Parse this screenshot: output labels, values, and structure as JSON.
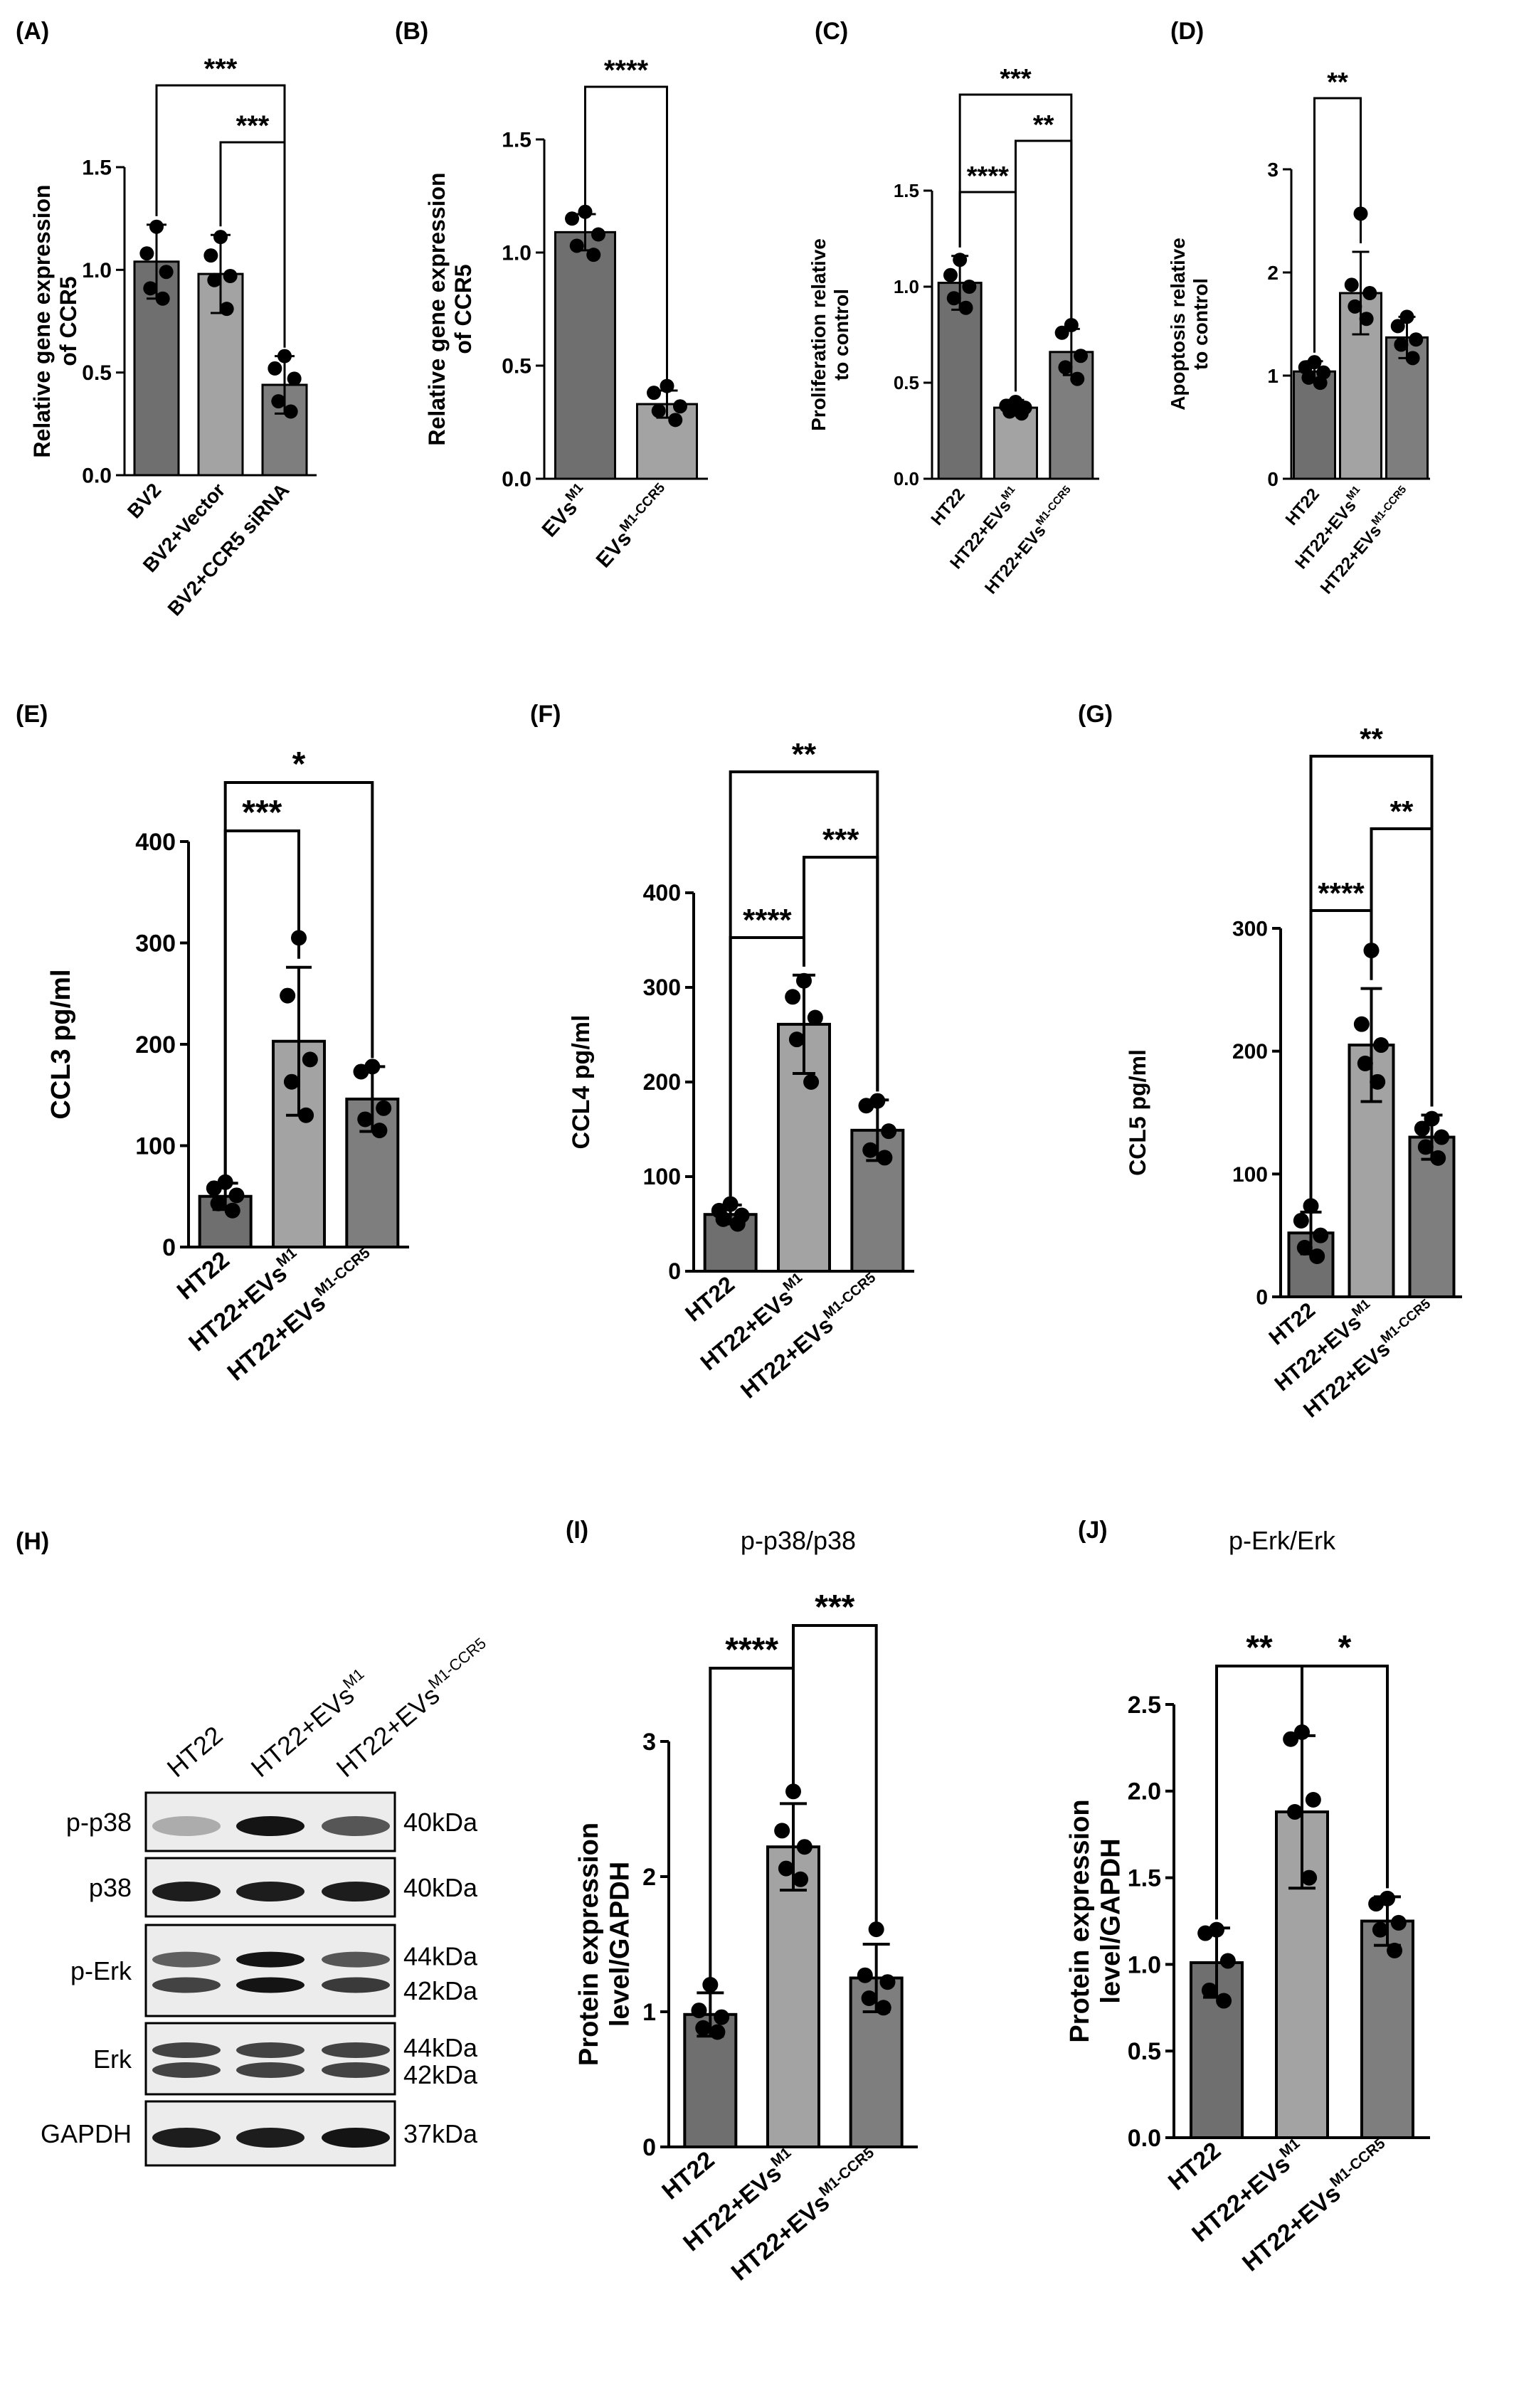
{
  "figure": {
    "blot": {
      "letter": "(H)",
      "lanes": [
        "HT22",
        "HT22+EVs",
        "HT22+EVs"
      ],
      "lane_sups": [
        "",
        "M1",
        "M1-CCR5"
      ],
      "rows": [
        {
          "label": "p-p38",
          "kda": [
            "40kDa"
          ]
        },
        {
          "label": "p38",
          "kda": [
            "40kDa"
          ]
        },
        {
          "label": "p-Erk",
          "kda": [
            "44kDa",
            "42kDa"
          ]
        },
        {
          "label": "Erk",
          "kda": [
            "44kDa",
            "42kDa"
          ]
        },
        {
          "label": "GAPDH",
          "kda": [
            "37kDa"
          ]
        }
      ]
    }
  },
  "chart_data": [
    {
      "panel": "(A)",
      "type": "bar",
      "title": "",
      "ylabel": [
        "Relative gene expression",
        "of CCR5"
      ],
      "categories": [
        "BV2",
        "BV2+Vector",
        "BV2+CCR5 siRNA"
      ],
      "category_sups": [
        "",
        "",
        ""
      ],
      "values": [
        1.04,
        0.98,
        0.44
      ],
      "errors": [
        0.18,
        0.19,
        0.14
      ],
      "points": [
        [
          1.21,
          1.08,
          0.99,
          0.91,
          0.86
        ],
        [
          1.16,
          1.07,
          0.97,
          0.95,
          0.81
        ],
        [
          0.58,
          0.52,
          0.47,
          0.36,
          0.31
        ]
      ],
      "ylim": [
        0,
        1.5
      ],
      "yticks": [
        "0.0",
        "0.5",
        "1.0",
        "1.5"
      ],
      "comparisons": [
        {
          "from": 0,
          "to": 2,
          "label": "***"
        },
        {
          "from": 1,
          "to": 2,
          "label": "***"
        }
      ]
    },
    {
      "panel": "(B)",
      "type": "bar",
      "title": "",
      "ylabel": [
        "Relative gene expression",
        "of CCR5"
      ],
      "categories": [
        "EVs",
        "EVs"
      ],
      "category_sups": [
        "M1",
        "M1-CCR5"
      ],
      "values": [
        1.09,
        0.33
      ],
      "errors": [
        0.08,
        0.06
      ],
      "points": [
        [
          1.18,
          1.15,
          1.08,
          1.03,
          0.99
        ],
        [
          0.41,
          0.38,
          0.32,
          0.3,
          0.26
        ]
      ],
      "ylim": [
        0,
        1.5
      ],
      "yticks": [
        "0.0",
        "0.5",
        "1.0",
        "1.5"
      ],
      "comparisons": [
        {
          "from": 0,
          "to": 1,
          "label": "****"
        }
      ]
    },
    {
      "panel": "(C)",
      "type": "bar",
      "title": "",
      "ylabel": [
        "Proliferation relative",
        "to control"
      ],
      "categories": [
        "HT22",
        "HT22+EVs",
        "HT22+EVs"
      ],
      "category_sups": [
        "",
        "M1",
        "M1-CCR5"
      ],
      "values": [
        1.02,
        0.37,
        0.66
      ],
      "errors": [
        0.14,
        0.04,
        0.12
      ],
      "points": [
        [
          1.14,
          1.06,
          1.0,
          0.94,
          0.89
        ],
        [
          0.4,
          0.38,
          0.37,
          0.35,
          0.34
        ],
        [
          0.8,
          0.76,
          0.64,
          0.58,
          0.52
        ]
      ],
      "ylim": [
        0,
        1.5
      ],
      "yticks": [
        "0.0",
        "0.5",
        "1.0",
        "1.5"
      ],
      "comparisons": [
        {
          "from": 0,
          "to": 2,
          "label": "***"
        },
        {
          "from": 1,
          "to": 2,
          "label": "**"
        },
        {
          "from": 0,
          "to": 1,
          "label": "****"
        }
      ]
    },
    {
      "panel": "(D)",
      "type": "bar",
      "title": "",
      "ylabel": [
        "Apoptosis relative",
        "to control"
      ],
      "categories": [
        "HT22",
        "HT22+EVs",
        "HT22+EVs"
      ],
      "category_sups": [
        "",
        "M1",
        "M1-CCR5"
      ],
      "values": [
        1.04,
        1.8,
        1.37
      ],
      "errors": [
        0.1,
        0.4,
        0.2
      ],
      "points": [
        [
          1.13,
          1.08,
          1.03,
          0.98,
          0.93
        ],
        [
          2.57,
          1.88,
          1.8,
          1.67,
          1.55
        ],
        [
          1.57,
          1.48,
          1.35,
          1.3,
          1.17
        ]
      ],
      "ylim": [
        0,
        3
      ],
      "yticks": [
        "0",
        "1",
        "2",
        "3"
      ],
      "comparisons": [
        {
          "from": 0,
          "to": 1,
          "label": "**"
        }
      ]
    },
    {
      "panel": "(E)",
      "type": "bar",
      "title": "",
      "ylabel": [
        "CCL3 pg/ml"
      ],
      "categories": [
        "HT22",
        "HT22+EVs",
        "HT22+EVs"
      ],
      "category_sups": [
        "",
        "M1",
        "M1-CCR5"
      ],
      "values": [
        50,
        203,
        146
      ],
      "errors": [
        13,
        73,
        32
      ],
      "points": [
        [
          64,
          58,
          51,
          43,
          36
        ],
        [
          305,
          248,
          185,
          163,
          130
        ],
        [
          178,
          173,
          137,
          126,
          115
        ]
      ],
      "ylim": [
        0,
        400
      ],
      "yticks": [
        "0",
        "100",
        "200",
        "300",
        "400"
      ],
      "comparisons": [
        {
          "from": 0,
          "to": 1,
          "label": "***"
        },
        {
          "from": 0,
          "to": 2,
          "label": "*"
        }
      ]
    },
    {
      "panel": "(F)",
      "type": "bar",
      "title": "",
      "ylabel": [
        "CCL4 pg/ml"
      ],
      "categories": [
        "HT22",
        "HT22+EVs",
        "HT22+EVs"
      ],
      "category_sups": [
        "",
        "M1",
        "M1-CCR5"
      ],
      "values": [
        60,
        261,
        149
      ],
      "errors": [
        10,
        52,
        32
      ],
      "points": [
        [
          71,
          64,
          59,
          55,
          50
        ],
        [
          307,
          290,
          268,
          245,
          200
        ],
        [
          180,
          175,
          148,
          128,
          120
        ]
      ],
      "ylim": [
        0,
        400
      ],
      "yticks": [
        "0",
        "100",
        "200",
        "300",
        "400"
      ],
      "comparisons": [
        {
          "from": 0,
          "to": 2,
          "label": "**"
        },
        {
          "from": 1,
          "to": 2,
          "label": "***"
        },
        {
          "from": 0,
          "to": 1,
          "label": "****"
        }
      ]
    },
    {
      "panel": "(G)",
      "type": "bar",
      "title": "",
      "ylabel": [
        "CCL5 pg/ml"
      ],
      "categories": [
        "HT22",
        "HT22+EVs",
        "HT22+EVs"
      ],
      "category_sups": [
        "",
        "M1",
        "M1-CCR5"
      ],
      "values": [
        52,
        205,
        130
      ],
      "errors": [
        17,
        46,
        18
      ],
      "points": [
        [
          74,
          62,
          50,
          40,
          33
        ],
        [
          282,
          222,
          205,
          190,
          175
        ],
        [
          145,
          137,
          130,
          122,
          113
        ]
      ],
      "ylim": [
        0,
        300
      ],
      "yticks": [
        "0",
        "100",
        "200",
        "300"
      ],
      "comparisons": [
        {
          "from": 0,
          "to": 2,
          "label": "**"
        },
        {
          "from": 1,
          "to": 2,
          "label": "**"
        },
        {
          "from": 0,
          "to": 1,
          "label": "****"
        }
      ]
    },
    {
      "panel": "(I)",
      "type": "bar",
      "title": "p-p38/p38",
      "ylabel": [
        "Protein expression",
        "level/GAPDH"
      ],
      "categories": [
        "HT22",
        "HT22+EVs",
        "HT22+EVs"
      ],
      "category_sups": [
        "",
        "M1",
        "M1-CCR5"
      ],
      "values": [
        0.98,
        2.22,
        1.25
      ],
      "errors": [
        0.16,
        0.32,
        0.25
      ],
      "points": [
        [
          1.2,
          1.01,
          0.96,
          0.88,
          0.85
        ],
        [
          2.63,
          2.34,
          2.22,
          2.06,
          1.98
        ],
        [
          1.61,
          1.27,
          1.22,
          1.1,
          1.03
        ]
      ],
      "ylim": [
        0,
        3
      ],
      "yticks": [
        "0",
        "1",
        "2",
        "3"
      ],
      "comparisons": [
        {
          "from": 0,
          "to": 1,
          "label": "****"
        },
        {
          "from": 1,
          "to": 2,
          "label": "***"
        }
      ]
    },
    {
      "panel": "(J)",
      "type": "bar",
      "title": "p-Erk/Erk",
      "ylabel": [
        "Protein expression",
        "level/GAPDH"
      ],
      "categories": [
        "HT22",
        "HT22+EVs",
        "HT22+EVs"
      ],
      "category_sups": [
        "",
        "M1",
        "M1-CCR5"
      ],
      "values": [
        1.01,
        1.88,
        1.25
      ],
      "errors": [
        0.2,
        0.44,
        0.14
      ],
      "points": [
        [
          1.2,
          1.18,
          1.02,
          0.85,
          0.79
        ],
        [
          2.34,
          2.3,
          1.95,
          1.88,
          1.5
        ],
        [
          1.38,
          1.35,
          1.24,
          1.2,
          1.08
        ]
      ],
      "ylim": [
        0,
        2.5
      ],
      "yticks": [
        "0.0",
        "0.5",
        "1.0",
        "1.5",
        "2.0",
        "2.5"
      ],
      "comparisons": [
        {
          "from": 0,
          "to": 1,
          "label": "**"
        },
        {
          "from": 1,
          "to": 2,
          "label": "*"
        }
      ]
    }
  ]
}
